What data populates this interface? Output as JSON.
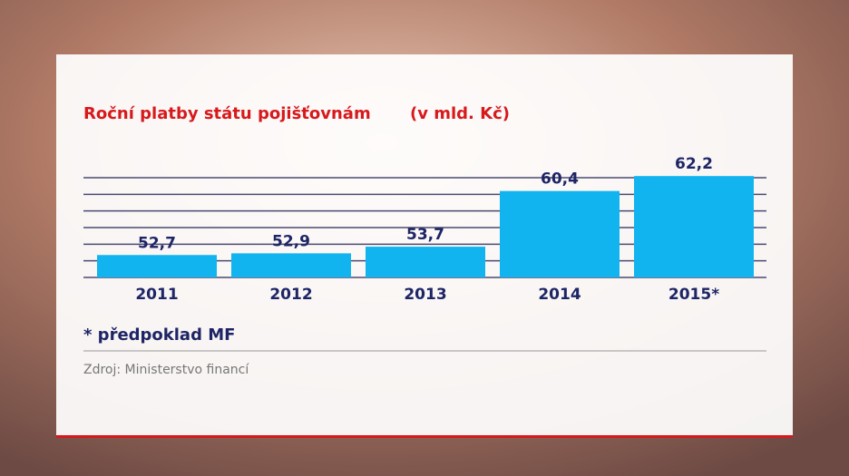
{
  "chart_data": {
    "type": "bar",
    "title": "Roční platby státu pojišťovnám",
    "unit": "(v mld. Kč)",
    "categories": [
      "2011",
      "2012",
      "2013",
      "2014",
      "2015*"
    ],
    "values": [
      52.7,
      52.9,
      53.7,
      60.4,
      62.2
    ],
    "value_labels": [
      "52,7",
      "52,9",
      "53,7",
      "60,4",
      "62,2"
    ],
    "color": "#12b4ef",
    "ylim": [
      50,
      62
    ],
    "yticks": [
      50,
      52,
      54,
      56,
      58,
      60,
      62
    ],
    "grid": true,
    "footnote": "* předpoklad MF",
    "source": "Zdroj: Ministerstvo financí"
  }
}
